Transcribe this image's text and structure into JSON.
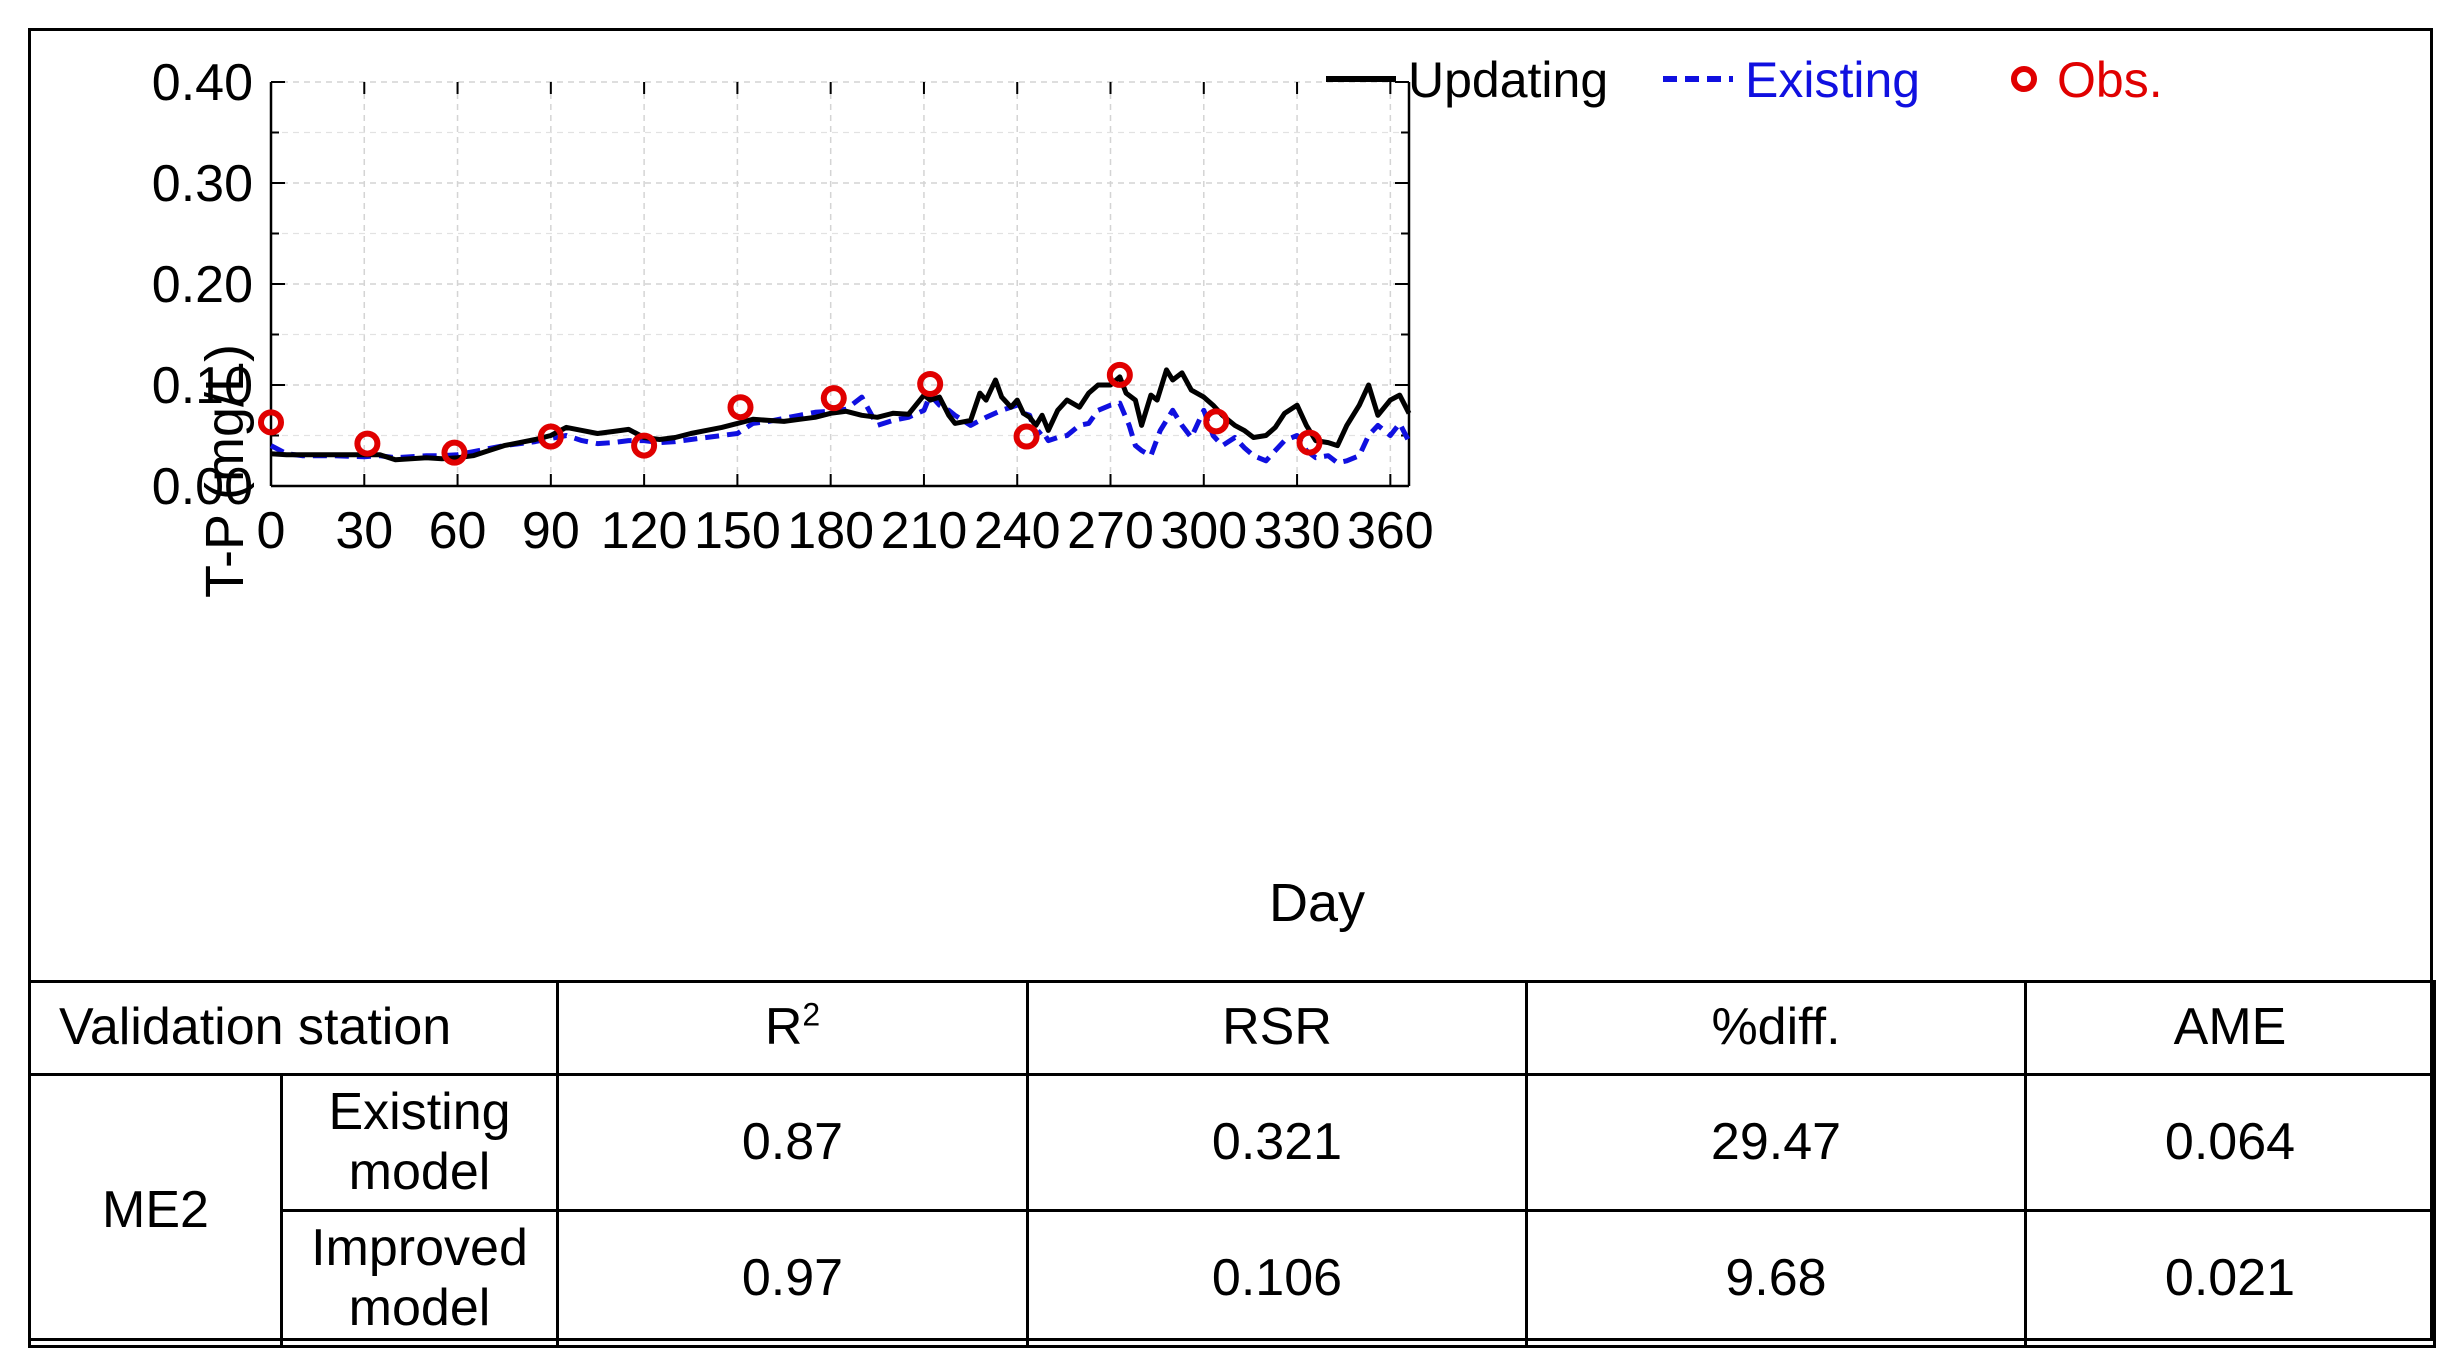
{
  "chart_data": {
    "type": "line",
    "xlabel": "Day",
    "ylabel": "T-P (mg/L)",
    "xlim": [
      0,
      366
    ],
    "ylim": [
      0,
      0.4
    ],
    "xticks": [
      "0",
      "30",
      "60",
      "90",
      "120",
      "150",
      "180",
      "210",
      "240",
      "270",
      "300",
      "330",
      "360"
    ],
    "yticks": [
      "0.00",
      "0.10",
      "0.20",
      "0.30",
      "0.40"
    ],
    "grid": true,
    "legend": {
      "position": "top-right",
      "entries": [
        "Updating",
        "Existing",
        "Obs."
      ]
    },
    "series": [
      {
        "name": "Updating",
        "style": "solid",
        "color": "#000000",
        "x": [
          0,
          5,
          10,
          20,
          30,
          35,
          40,
          45,
          50,
          55,
          60,
          65,
          70,
          75,
          80,
          85,
          90,
          95,
          100,
          105,
          110,
          115,
          120,
          125,
          130,
          135,
          140,
          145,
          150,
          155,
          160,
          165,
          170,
          175,
          180,
          185,
          190,
          195,
          200,
          205,
          210,
          212,
          215,
          218,
          220,
          225,
          228,
          230,
          233,
          235,
          238,
          240,
          242,
          244,
          246,
          248,
          250,
          253,
          256,
          260,
          263,
          266,
          270,
          273,
          275,
          278,
          280,
          283,
          285,
          288,
          290,
          293,
          296,
          300,
          303,
          306,
          310,
          313,
          316,
          320,
          323,
          326,
          330,
          333,
          336,
          340,
          343,
          346,
          350,
          353,
          356,
          360,
          363,
          366
        ],
        "y": [
          0.032,
          0.031,
          0.031,
          0.031,
          0.031,
          0.031,
          0.026,
          0.027,
          0.028,
          0.027,
          0.028,
          0.03,
          0.035,
          0.04,
          0.043,
          0.046,
          0.05,
          0.058,
          0.055,
          0.052,
          0.054,
          0.056,
          0.048,
          0.046,
          0.048,
          0.052,
          0.055,
          0.058,
          0.062,
          0.066,
          0.065,
          0.064,
          0.066,
          0.068,
          0.072,
          0.074,
          0.07,
          0.068,
          0.072,
          0.071,
          0.09,
          0.085,
          0.088,
          0.07,
          0.062,
          0.065,
          0.092,
          0.085,
          0.105,
          0.088,
          0.078,
          0.085,
          0.072,
          0.068,
          0.06,
          0.07,
          0.055,
          0.075,
          0.085,
          0.078,
          0.092,
          0.1,
          0.1,
          0.108,
          0.092,
          0.085,
          0.06,
          0.09,
          0.085,
          0.115,
          0.105,
          0.112,
          0.095,
          0.088,
          0.08,
          0.07,
          0.06,
          0.055,
          0.048,
          0.05,
          0.058,
          0.072,
          0.08,
          0.06,
          0.045,
          0.043,
          0.04,
          0.06,
          0.08,
          0.1,
          0.07,
          0.085,
          0.09,
          0.072
        ]
      },
      {
        "name": "Existing",
        "style": "dashed",
        "color": "#1010e0",
        "x": [
          0,
          5,
          10,
          20,
          30,
          35,
          40,
          45,
          50,
          55,
          60,
          65,
          70,
          75,
          80,
          85,
          90,
          95,
          100,
          105,
          110,
          115,
          120,
          125,
          130,
          135,
          140,
          145,
          150,
          155,
          160,
          165,
          170,
          175,
          180,
          185,
          190,
          195,
          200,
          205,
          210,
          212,
          215,
          218,
          220,
          225,
          230,
          235,
          240,
          242,
          244,
          246,
          248,
          250,
          253,
          256,
          260,
          263,
          266,
          270,
          273,
          276,
          278,
          280,
          283,
          286,
          290,
          293,
          296,
          300,
          303,
          306,
          310,
          313,
          316,
          320,
          323,
          326,
          330,
          333,
          336,
          340,
          343,
          346,
          350,
          353,
          356,
          360,
          363,
          366
        ],
        "y": [
          0.04,
          0.032,
          0.03,
          0.03,
          0.029,
          0.03,
          0.028,
          0.029,
          0.03,
          0.03,
          0.031,
          0.034,
          0.037,
          0.04,
          0.042,
          0.044,
          0.047,
          0.05,
          0.045,
          0.042,
          0.043,
          0.045,
          0.045,
          0.043,
          0.044,
          0.046,
          0.048,
          0.05,
          0.052,
          0.062,
          0.064,
          0.067,
          0.07,
          0.073,
          0.074,
          0.076,
          0.088,
          0.06,
          0.065,
          0.068,
          0.075,
          0.09,
          0.08,
          0.075,
          0.07,
          0.06,
          0.068,
          0.075,
          0.08,
          0.072,
          0.07,
          0.05,
          0.055,
          0.045,
          0.048,
          0.05,
          0.06,
          0.062,
          0.075,
          0.08,
          0.082,
          0.06,
          0.04,
          0.035,
          0.03,
          0.055,
          0.075,
          0.06,
          0.048,
          0.075,
          0.05,
          0.04,
          0.048,
          0.038,
          0.03,
          0.025,
          0.035,
          0.045,
          0.05,
          0.035,
          0.028,
          0.03,
          0.023,
          0.025,
          0.03,
          0.05,
          0.06,
          0.05,
          0.062,
          0.044
        ]
      }
    ],
    "observations": {
      "name": "Obs.",
      "color": "#e00000",
      "x": [
        0,
        31,
        59,
        90,
        120,
        151,
        181,
        212,
        243,
        273,
        304,
        334
      ],
      "y": [
        0.063,
        0.042,
        0.033,
        0.049,
        0.04,
        0.078,
        0.087,
        0.101,
        0.049,
        0.11,
        0.064,
        0.043
      ]
    }
  },
  "table": {
    "header": {
      "station": "Validation station",
      "r2": "R",
      "r2_sup": "2",
      "rsr": "RSR",
      "pdiff": "%diff.",
      "ame": "AME"
    },
    "station": "ME2",
    "rows": [
      {
        "model_line1": "Existing",
        "model_line2": "model",
        "r2": "0.87",
        "rsr": "0.321",
        "pdiff": "29.47",
        "ame": "0.064"
      },
      {
        "model_line1": "Improved",
        "model_line2": "model",
        "r2": "0.97",
        "rsr": "0.106",
        "pdiff": "9.68",
        "ame": "0.021"
      }
    ]
  }
}
